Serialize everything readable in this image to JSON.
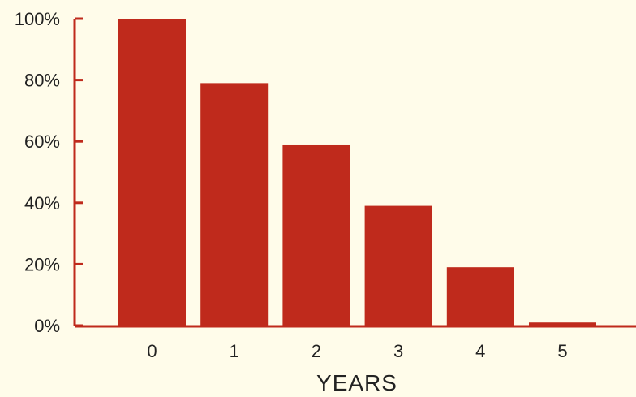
{
  "chart_data": {
    "type": "bar",
    "categories": [
      "0",
      "1",
      "2",
      "3",
      "4",
      "5"
    ],
    "values": [
      100,
      79,
      59,
      39,
      19,
      1
    ],
    "ylim": [
      0,
      100
    ],
    "yticks": [
      0,
      20,
      40,
      60,
      80,
      100
    ],
    "ytick_labels": [
      "0%",
      "20%",
      "40%",
      "60%",
      "80%",
      "100%"
    ],
    "xlabel": "YEARS",
    "ylabel": "",
    "title": "",
    "grid": false,
    "legend": "none",
    "colors": {
      "bar": "#bf2a1c",
      "axis": "#bf2a1c",
      "background": "#fffcea",
      "text": "#222222"
    }
  }
}
